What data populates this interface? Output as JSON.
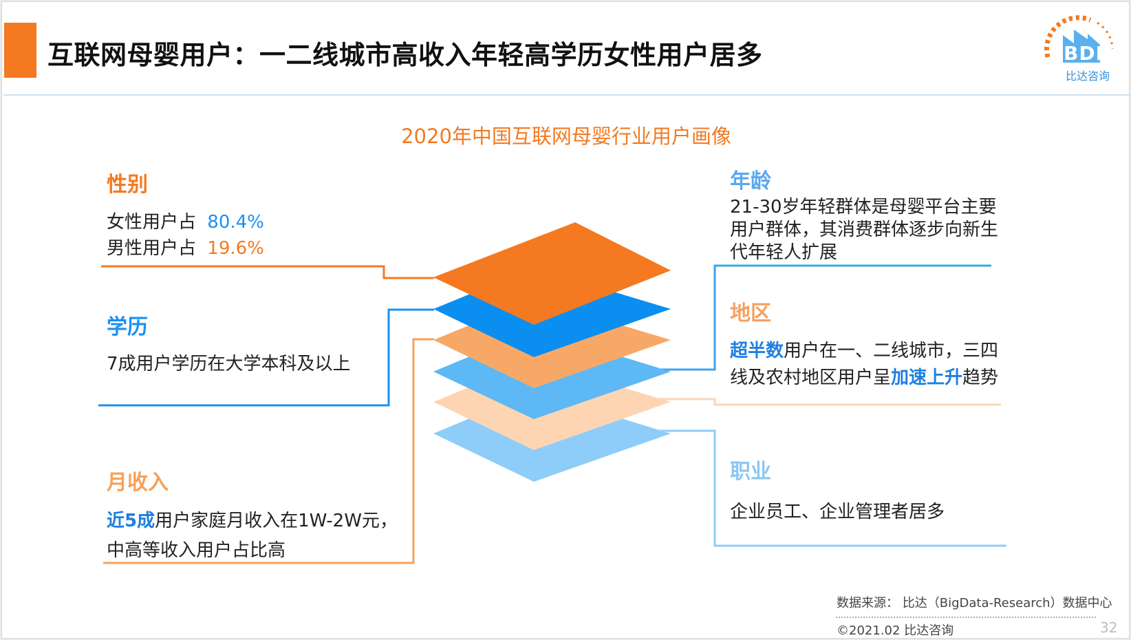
{
  "header": {
    "title": "互联网母婴用户：一二线城市高收入年轻高学历女性用户居多",
    "logo_text": "BDR",
    "logo_subtext": "比达咨询"
  },
  "subtitle": "2020年中国互联网母婴行业用户画像",
  "left": {
    "gender": {
      "heading": "性别",
      "female_label": "女性用户占",
      "female_value": "80.4%",
      "male_label": "男性用户占",
      "male_value": "19.6%"
    },
    "education": {
      "heading": "学历",
      "text": "7成用户学历在大学本科及以上"
    },
    "income": {
      "heading": "月收入",
      "highlight": "近5成",
      "text1": "用户家庭月收入在1W-2W元，",
      "text2": "中高等收入用户占比高"
    }
  },
  "right": {
    "age": {
      "heading": "年龄",
      "line1": "21-30岁年轻群体是母婴平台主要",
      "line2": "用户群体，其消费群体逐步向新生",
      "line3": "代年轻人扩展"
    },
    "region": {
      "heading": "地区",
      "highlight1": "超半数",
      "text1": "用户在一、二线城市，三四",
      "text2a": "线及农村地区用户呈",
      "highlight2": "加速上升",
      "text2b": "趋势"
    },
    "occupation": {
      "heading": "职业",
      "text": "企业员工、企业管理者居多"
    }
  },
  "footer": {
    "source": "数据来源： 比达（BigData-Research）数据中心",
    "copyright": "©2021.02 比达咨询",
    "page_number": "32"
  },
  "colors": {
    "orange": "#f47920",
    "blue": "#0a8ef0",
    "light_orange": "#f8a866",
    "sky_blue": "#5db8f5",
    "pale_orange": "#fdd5b3",
    "pale_blue": "#8ecdf9"
  }
}
